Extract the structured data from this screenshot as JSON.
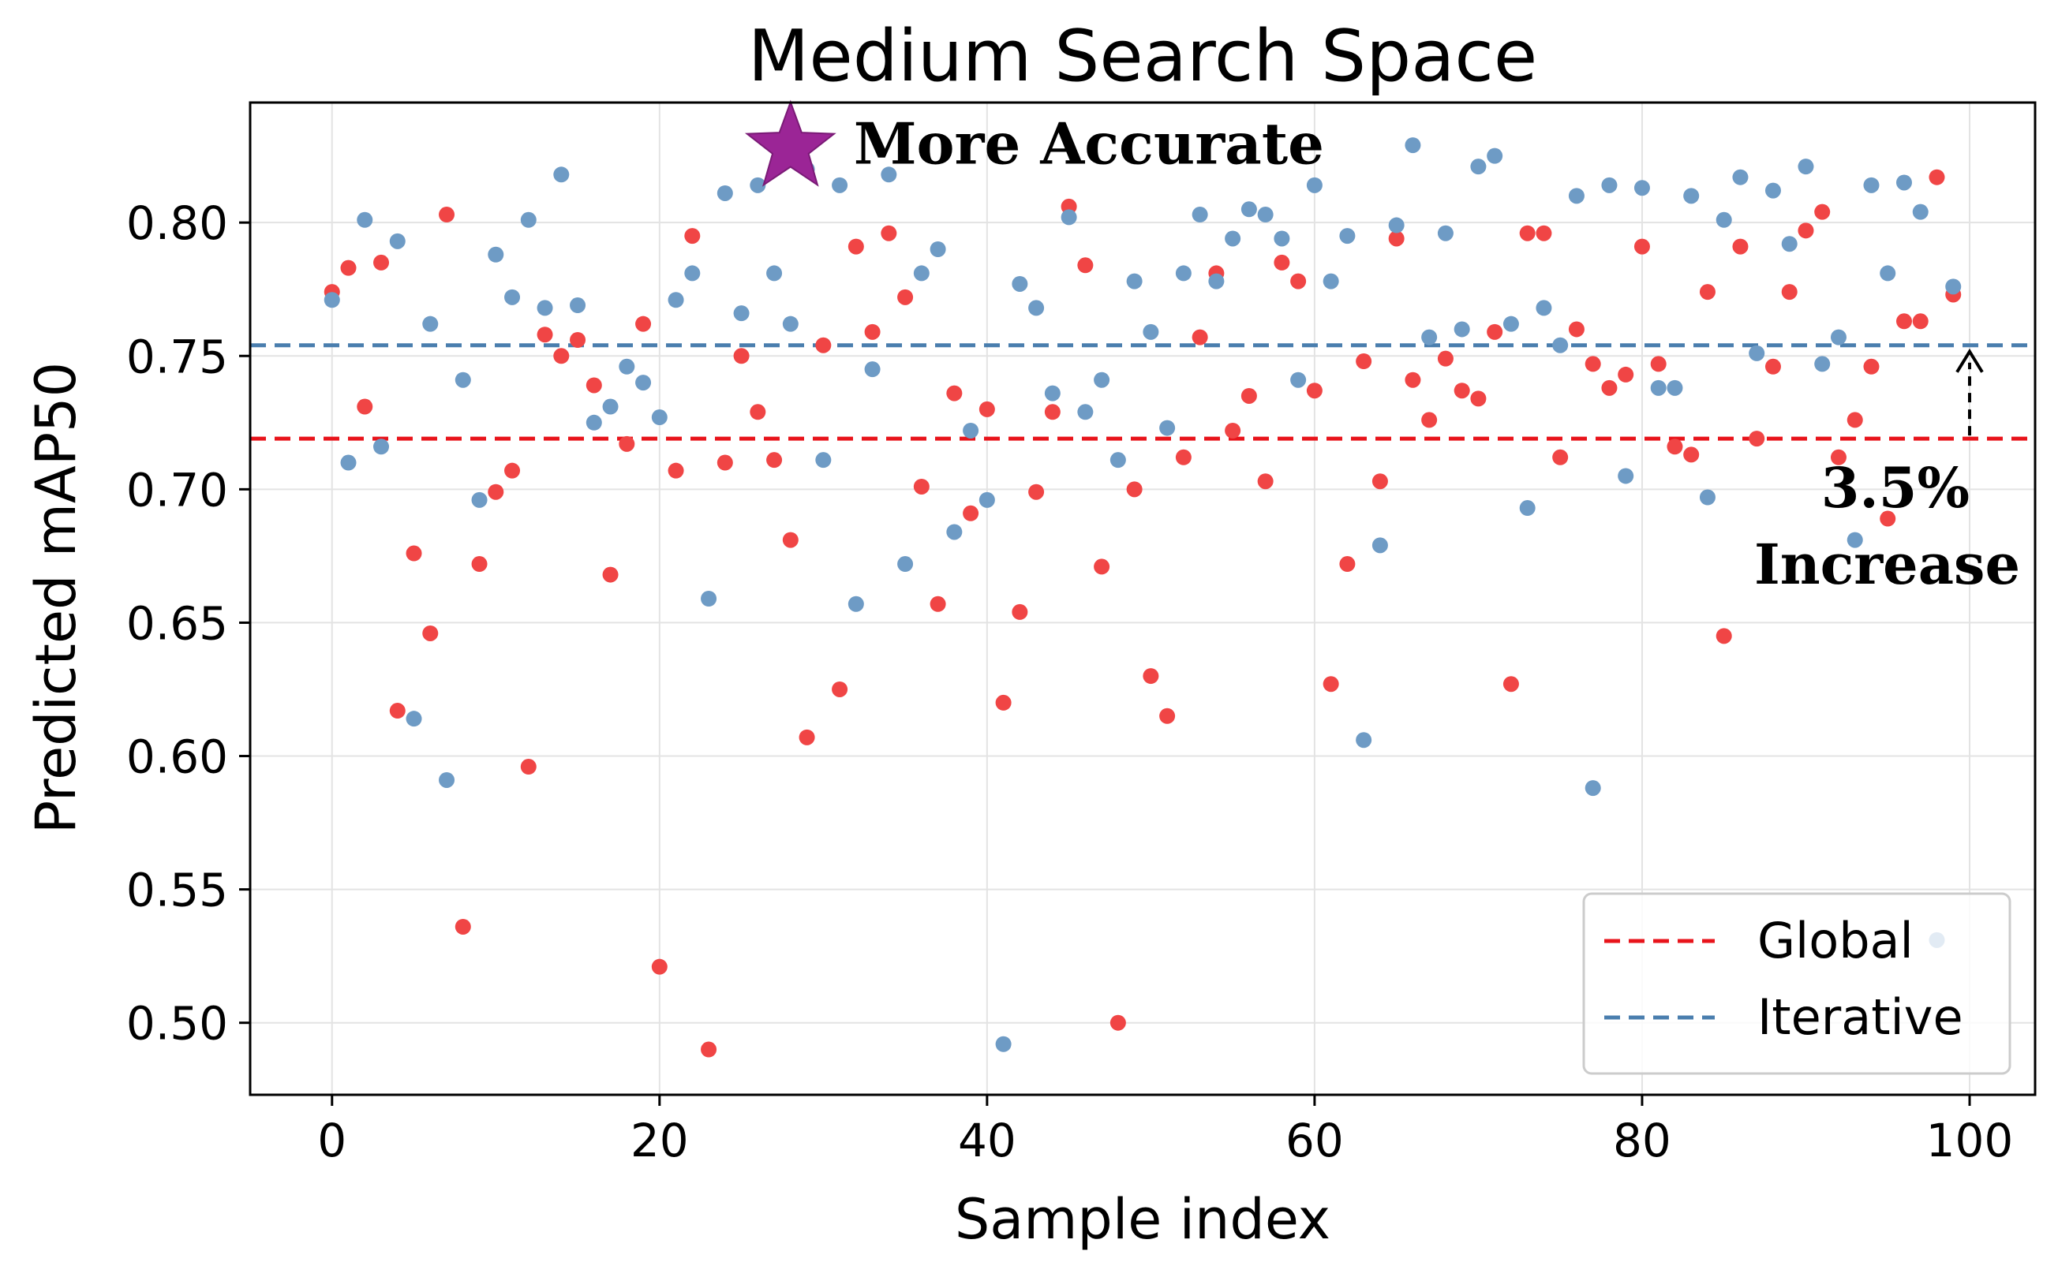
{
  "chart_data": {
    "type": "scatter",
    "title": "Medium Search Space",
    "xlabel": "Sample index",
    "ylabel": "Predicted mAP50",
    "xlim": [
      -5,
      104
    ],
    "ylim": [
      0.473,
      0.845
    ],
    "xticks": [
      0,
      20,
      40,
      60,
      80,
      100
    ],
    "yticks": [
      0.5,
      0.55,
      0.6,
      0.65,
      0.7,
      0.75,
      0.8
    ],
    "xtick_labels": [
      "0",
      "20",
      "40",
      "60",
      "80",
      "100"
    ],
    "ytick_labels": [
      "0.50",
      "0.55",
      "0.60",
      "0.65",
      "0.70",
      "0.75",
      "0.80"
    ],
    "grid": true,
    "legend_position": "bottom-right",
    "series": [
      {
        "name": "Global",
        "color": "#f04545",
        "marker": "circle",
        "baseline": 0.719,
        "baseline_color": "#e8141b",
        "x": [
          0,
          1,
          2,
          3,
          4,
          5,
          6,
          7,
          8,
          9,
          10,
          11,
          12,
          13,
          14,
          15,
          16,
          17,
          18,
          19,
          20,
          21,
          22,
          23,
          24,
          25,
          26,
          27,
          28,
          29,
          30,
          31,
          32,
          33,
          34,
          35,
          36,
          37,
          38,
          39,
          40,
          41,
          42,
          43,
          44,
          45,
          46,
          47,
          48,
          49,
          50,
          51,
          52,
          53,
          54,
          55,
          56,
          57,
          58,
          59,
          60,
          61,
          62,
          63,
          64,
          65,
          66,
          67,
          68,
          69,
          70,
          71,
          72,
          73,
          74,
          75,
          76,
          77,
          78,
          79,
          80,
          81,
          82,
          83,
          84,
          85,
          86,
          87,
          88,
          89,
          90,
          91,
          92,
          93,
          94,
          95,
          96,
          97,
          98,
          99
        ],
        "y": [
          0.774,
          0.783,
          0.731,
          0.785,
          0.617,
          0.676,
          0.646,
          0.803,
          0.536,
          0.672,
          0.699,
          0.707,
          0.596,
          0.758,
          0.75,
          0.756,
          0.739,
          0.668,
          0.717,
          0.762,
          0.521,
          0.707,
          0.795,
          0.49,
          0.71,
          0.75,
          0.729,
          0.711,
          0.681,
          0.607,
          0.754,
          0.625,
          0.791,
          0.759,
          0.796,
          0.772,
          0.701,
          0.657,
          0.736,
          0.691,
          0.73,
          0.62,
          0.654,
          0.699,
          0.729,
          0.806,
          0.784,
          0.671,
          0.5,
          0.7,
          0.63,
          0.615,
          0.712,
          0.757,
          0.781,
          0.722,
          0.735,
          0.703,
          0.785,
          0.778,
          0.737,
          0.627,
          0.672,
          0.748,
          0.703,
          0.794,
          0.741,
          0.726,
          0.749,
          0.737,
          0.734,
          0.759,
          0.627,
          0.796,
          0.796,
          0.712,
          0.76,
          0.747,
          0.738,
          0.743,
          0.791,
          0.747,
          0.716,
          0.713,
          0.774,
          0.645,
          0.791,
          0.719,
          0.746,
          0.774,
          0.797,
          0.804,
          0.712,
          0.726,
          0.746,
          0.689,
          0.763,
          0.763,
          0.817,
          0.773
        ]
      },
      {
        "name": "Iterative",
        "color": "#6e9bc5",
        "marker": "circle",
        "baseline": 0.754,
        "baseline_color": "#4a7eae",
        "x": [
          0,
          1,
          2,
          3,
          4,
          5,
          6,
          7,
          8,
          9,
          10,
          11,
          12,
          13,
          14,
          15,
          16,
          17,
          18,
          19,
          20,
          21,
          22,
          23,
          24,
          25,
          26,
          27,
          28,
          29,
          30,
          31,
          32,
          33,
          34,
          35,
          36,
          37,
          38,
          39,
          40,
          41,
          42,
          43,
          44,
          45,
          46,
          47,
          48,
          49,
          50,
          51,
          52,
          53,
          54,
          55,
          56,
          57,
          58,
          59,
          60,
          61,
          62,
          63,
          64,
          65,
          66,
          67,
          68,
          69,
          70,
          71,
          72,
          73,
          74,
          75,
          76,
          77,
          78,
          79,
          80,
          81,
          82,
          83,
          84,
          85,
          86,
          87,
          88,
          89,
          90,
          91,
          92,
          93,
          94,
          95,
          96,
          97,
          98,
          99
        ],
        "y": [
          0.771,
          0.71,
          0.801,
          0.716,
          0.793,
          0.614,
          0.762,
          0.591,
          0.741,
          0.696,
          0.788,
          0.772,
          0.801,
          0.768,
          0.818,
          0.769,
          0.725,
          0.731,
          0.746,
          0.74,
          0.727,
          0.771,
          0.781,
          0.659,
          0.811,
          0.766,
          0.814,
          0.781,
          0.762,
          0.82,
          0.711,
          0.814,
          0.657,
          0.745,
          0.818,
          0.672,
          0.781,
          0.79,
          0.684,
          0.722,
          0.696,
          0.492,
          0.777,
          0.768,
          0.736,
          0.802,
          0.729,
          0.741,
          0.711,
          0.778,
          0.759,
          0.723,
          0.781,
          0.803,
          0.778,
          0.794,
          0.805,
          0.803,
          0.794,
          0.741,
          0.814,
          0.778,
          0.795,
          0.606,
          0.679,
          0.799,
          0.829,
          0.757,
          0.796,
          0.76,
          0.821,
          0.825,
          0.762,
          0.693,
          0.768,
          0.754,
          0.81,
          0.588,
          0.814,
          0.705,
          0.813,
          0.738,
          0.738,
          0.81,
          0.697,
          0.801,
          0.817,
          0.751,
          0.812,
          0.792,
          0.821,
          0.747,
          0.757,
          0.681,
          0.814,
          0.781,
          0.815,
          0.804,
          0.531,
          0.776
        ]
      }
    ],
    "annotations": [
      {
        "text": "More Accurate",
        "marker": "star",
        "marker_x": 28,
        "marker_y": 0.828,
        "marker_color": "#9b2596"
      },
      {
        "text_line1": "3.5%",
        "text_line2": "Increase",
        "arrow_x": 100,
        "arrow_from": 0.719,
        "arrow_to": 0.754
      }
    ]
  }
}
